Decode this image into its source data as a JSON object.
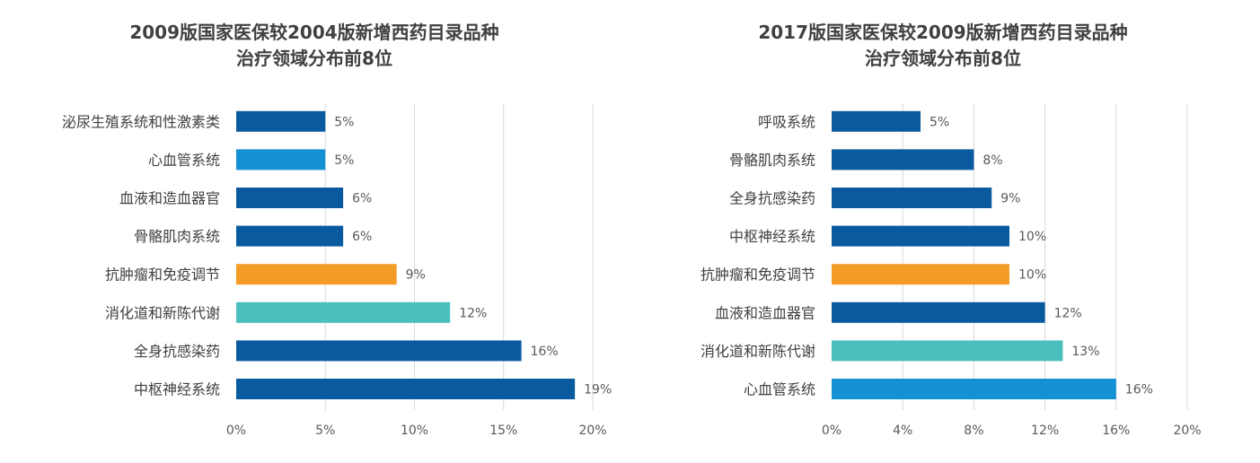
{
  "chart_data": [
    {
      "type": "bar",
      "orientation": "horizontal",
      "title": [
        "2009版国家医保较2004版新增西药目录品种",
        "治疗领域分布前8位"
      ],
      "categories": [
        "泌尿生殖系统和性激素类",
        "心血管系统",
        "血液和造血器官",
        "骨骼肌肉系统",
        "抗肿瘤和免疫调节",
        "消化道和新陈代谢",
        "全身抗感染药",
        "中枢神经系统"
      ],
      "values": [
        5,
        5,
        6,
        6,
        9,
        12,
        16,
        19
      ],
      "value_labels": [
        "5%",
        "5%",
        "6%",
        "6%",
        "9%",
        "12%",
        "16%",
        "19%"
      ],
      "colors": [
        "#0a5aa0",
        "#1391d4",
        "#0a5aa0",
        "#0a5aa0",
        "#f39c26",
        "#4bbfbe",
        "#0a5aa0",
        "#0a5aa0"
      ],
      "xlim": [
        0,
        20
      ],
      "ticks": [
        0,
        5,
        10,
        15,
        20
      ],
      "tick_labels": [
        "0%",
        "5%",
        "10%",
        "15%",
        "20%"
      ],
      "grid": true
    },
    {
      "type": "bar",
      "orientation": "horizontal",
      "title": [
        "2017版国家医保较2009版新增西药目录品种",
        "治疗领域分布前8位"
      ],
      "categories": [
        "呼吸系统",
        "骨骼肌肉系统",
        "全身抗感染药",
        "中枢神经系统",
        "抗肿瘤和免疫调节",
        "血液和造血器官",
        "消化道和新陈代谢",
        "心血管系统"
      ],
      "values": [
        5,
        8,
        9,
        10,
        10,
        12,
        13,
        16
      ],
      "value_labels": [
        "5%",
        "8%",
        "9%",
        "10%",
        "10%",
        "12%",
        "13%",
        "16%"
      ],
      "colors": [
        "#0a5aa0",
        "#0a5aa0",
        "#0a5aa0",
        "#0a5aa0",
        "#f39c26",
        "#0a5aa0",
        "#4bbfbe",
        "#1391d4"
      ],
      "xlim": [
        0,
        20
      ],
      "ticks": [
        0,
        4,
        8,
        12,
        16,
        20
      ],
      "tick_labels": [
        "0%",
        "4%",
        "8%",
        "12%",
        "16%",
        "20%"
      ],
      "grid": true
    }
  ]
}
